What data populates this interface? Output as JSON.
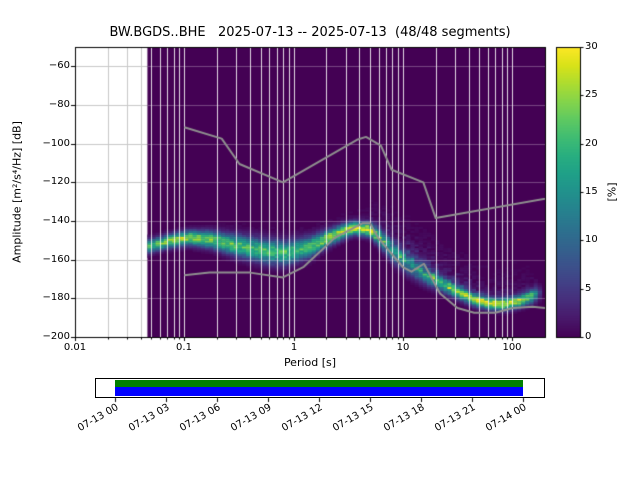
{
  "chart_data": {
    "type": "heatmap",
    "title": "BW.BGDS..BHE   2025-07-13 -- 2025-07-13  (48/48 segments)",
    "xlabel": "Period [s]",
    "ylabel": "Amplitude [m²/s⁴/Hz] [dB]",
    "colorbar_label": "[%]",
    "x_scale": "log",
    "xlim": [
      0.01,
      200
    ],
    "ylim": [
      -200,
      -50
    ],
    "clim": [
      0,
      30
    ],
    "x_ticks": [
      "0.01",
      "0.1",
      "1",
      "10",
      "100"
    ],
    "x_tick_values": [
      0.01,
      0.1,
      1,
      10,
      100
    ],
    "y_ticks": [
      "−60",
      "−80",
      "−100",
      "−120",
      "−140",
      "−160",
      "−180",
      "−200"
    ],
    "y_tick_values": [
      -60,
      -80,
      -100,
      -120,
      -140,
      -160,
      -180,
      -200
    ],
    "cbar_ticks": [
      "0",
      "5",
      "10",
      "15",
      "20",
      "25",
      "30"
    ],
    "cbar_tick_values": [
      0,
      5,
      10,
      15,
      20,
      25,
      30
    ],
    "data_period_range": [
      0.046,
      200
    ],
    "grid": true,
    "pdf_ridge": [
      {
        "p": 0.046,
        "db": -153.0,
        "peak": 20,
        "sigma": 2.2,
        "tail": 0
      },
      {
        "p": 0.07,
        "db": -150.5,
        "peak": 24,
        "sigma": 2.2,
        "tail": 0
      },
      {
        "p": 0.11,
        "db": -148.5,
        "peak": 26,
        "sigma": 2.4,
        "tail": 0
      },
      {
        "p": 0.18,
        "db": -149.5,
        "peak": 24,
        "sigma": 2.8,
        "tail": 0
      },
      {
        "p": 0.3,
        "db": -152.5,
        "peak": 21,
        "sigma": 3.5,
        "tail": 1
      },
      {
        "p": 0.55,
        "db": -155.5,
        "peak": 20,
        "sigma": 4.0,
        "tail": 1
      },
      {
        "p": 0.85,
        "db": -156.5,
        "peak": 20,
        "sigma": 4.0,
        "tail": 1
      },
      {
        "p": 1.4,
        "db": -153.5,
        "peak": 21,
        "sigma": 3.4,
        "tail": 1
      },
      {
        "p": 2.2,
        "db": -148.0,
        "peak": 25,
        "sigma": 2.6,
        "tail": 1
      },
      {
        "p": 3.5,
        "db": -143.5,
        "peak": 28,
        "sigma": 2.2,
        "tail": 1
      },
      {
        "p": 5.0,
        "db": -144.5,
        "peak": 28,
        "sigma": 2.2,
        "tail": 2
      },
      {
        "p": 6.5,
        "db": -150.0,
        "peak": 17,
        "sigma": 3.2,
        "tail": 4
      },
      {
        "p": 8.5,
        "db": -157.0,
        "peak": 13,
        "sigma": 3.6,
        "tail": 6
      },
      {
        "p": 11.0,
        "db": -162.0,
        "peak": 13,
        "sigma": 3.6,
        "tail": 7
      },
      {
        "p": 15.0,
        "db": -167.0,
        "peak": 14,
        "sigma": 3.2,
        "tail": 7
      },
      {
        "p": 21.0,
        "db": -171.5,
        "peak": 16,
        "sigma": 2.8,
        "tail": 6
      },
      {
        "p": 30.0,
        "db": -176.0,
        "peak": 20,
        "sigma": 2.4,
        "tail": 5
      },
      {
        "p": 45.0,
        "db": -180.5,
        "peak": 25,
        "sigma": 2.1,
        "tail": 4
      },
      {
        "p": 62.0,
        "db": -182.5,
        "peak": 27,
        "sigma": 2.0,
        "tail": 3
      },
      {
        "p": 85.0,
        "db": -183.0,
        "peak": 27,
        "sigma": 2.0,
        "tail": 3
      },
      {
        "p": 115.0,
        "db": -181.5,
        "peak": 25,
        "sigma": 2.1,
        "tail": 3
      },
      {
        "p": 150.0,
        "db": -179.0,
        "peak": 20,
        "sigma": 2.3,
        "tail": 2
      },
      {
        "p": 172.0,
        "db": -177.5,
        "peak": 12,
        "sigma": 2.4,
        "tail": 1
      },
      {
        "p": 185.0,
        "db": -177.0,
        "peak": 0,
        "sigma": 2.4,
        "tail": 0
      }
    ],
    "noise_models": {
      "high": [
        [
          0.1,
          -91.5
        ],
        [
          0.22,
          -97.4
        ],
        [
          0.32,
          -110.5
        ],
        [
          0.8,
          -120.0
        ],
        [
          3.8,
          -98.0
        ],
        [
          4.6,
          -96.5
        ],
        [
          6.3,
          -101.0
        ],
        [
          7.9,
          -113.5
        ],
        [
          15.4,
          -120.0
        ],
        [
          20.0,
          -138.5
        ],
        [
          354.8,
          -126.0
        ]
      ],
      "low": [
        [
          0.1,
          -168.0
        ],
        [
          0.17,
          -166.7
        ],
        [
          0.4,
          -166.7
        ],
        [
          0.8,
          -169.2
        ],
        [
          1.24,
          -163.7
        ],
        [
          2.4,
          -148.6
        ],
        [
          4.3,
          -141.1
        ],
        [
          5.0,
          -141.1
        ],
        [
          6.0,
          -149.0
        ],
        [
          10.0,
          -163.8
        ],
        [
          12.0,
          -166.2
        ],
        [
          15.6,
          -162.1
        ],
        [
          21.9,
          -177.5
        ],
        [
          31.6,
          -185.0
        ],
        [
          45.0,
          -187.5
        ],
        [
          70.0,
          -187.5
        ],
        [
          101.0,
          -185.0
        ],
        [
          154.0,
          -184.4
        ],
        [
          328.0,
          -186.0
        ]
      ]
    },
    "viridis_stops": [
      "#440154",
      "#48186a",
      "#472d7b",
      "#424086",
      "#3b528b",
      "#33638d",
      "#2c728e",
      "#26828e",
      "#21918c",
      "#1fa088",
      "#28ae80",
      "#3fbc73",
      "#5ec962",
      "#84d44b",
      "#addc30",
      "#d8e219",
      "#fde725"
    ],
    "colors": {
      "pdf_background": "#440154",
      "grid_on_data": "#ffffff",
      "grid_on_empty": "#c8c8c8",
      "noise_model": "#8f8f8f",
      "frame": "#000000",
      "tick": "#000000"
    }
  },
  "timeline": {
    "labels": [
      "07-13 00",
      "07-13 03",
      "07-13 06",
      "07-13 09",
      "07-13 12",
      "07-13 15",
      "07-13 18",
      "07-13 21",
      "07-14 00"
    ],
    "coverage_top_color": "#008000",
    "coverage_bottom_color": "#0000ff",
    "background": "#ffffff",
    "border_color": "#000000"
  }
}
